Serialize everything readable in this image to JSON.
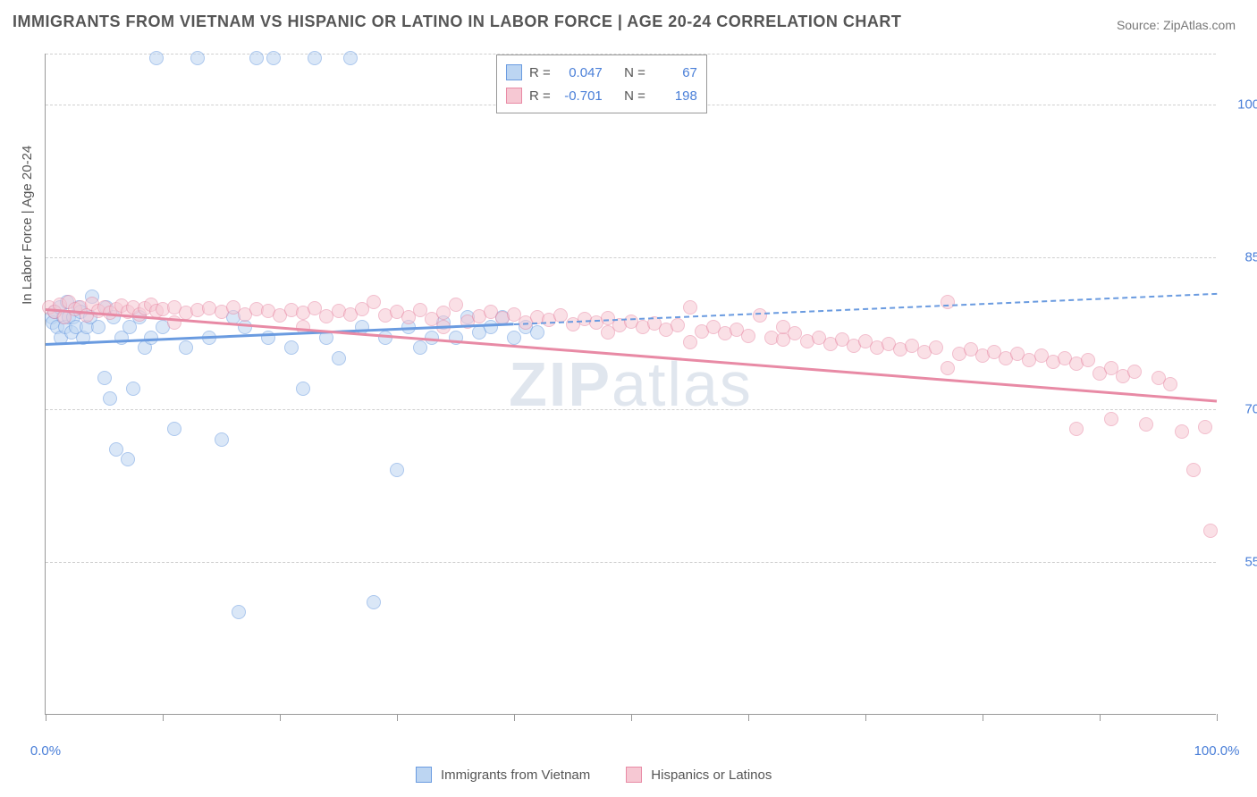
{
  "title": "IMMIGRANTS FROM VIETNAM VS HISPANIC OR LATINO IN LABOR FORCE | AGE 20-24 CORRELATION CHART",
  "source": "Source: ZipAtlas.com",
  "watermark_a": "ZIP",
  "watermark_b": "atlas",
  "chart": {
    "type": "scatter",
    "background_color": "#ffffff",
    "grid_color": "#d0d0d0",
    "axis_color": "#999999",
    "label_color": "#555555",
    "tick_label_color": "#4a7fd8",
    "xlim": [
      0,
      100
    ],
    "ylim": [
      40,
      105
    ],
    "x_ticks": [
      0,
      10,
      20,
      30,
      40,
      50,
      60,
      70,
      80,
      90,
      100
    ],
    "x_tick_labels": {
      "0": "0.0%",
      "100": "100.0%"
    },
    "y_grid": [
      55,
      70,
      85,
      100,
      105
    ],
    "y_tick_labels": {
      "55": "55.0%",
      "70": "70.0%",
      "85": "85.0%",
      "100": "100.0%"
    },
    "ylabel": "In Labor Force | Age 20-24",
    "marker_radius": 8,
    "marker_stroke_width": 1.5,
    "series": [
      {
        "name": "Immigrants from Vietnam",
        "fill": "#bcd5f2",
        "stroke": "#6a9be0",
        "fill_opacity": 0.55,
        "R": "0.047",
        "N": "67",
        "trend": {
          "x1": 0,
          "y1": 76.5,
          "x2": 40,
          "y2": 78.5,
          "solid_until_x": 40,
          "dash_to_x": 100,
          "y_at_100": 81.5
        },
        "points": [
          [
            0.5,
            79
          ],
          [
            0.6,
            78.5
          ],
          [
            0.8,
            79.5
          ],
          [
            1,
            78
          ],
          [
            1.2,
            80
          ],
          [
            1.3,
            77
          ],
          [
            1.5,
            79
          ],
          [
            1.7,
            78
          ],
          [
            1.8,
            80.5
          ],
          [
            2,
            79
          ],
          [
            2.2,
            77.5
          ],
          [
            2.4,
            79
          ],
          [
            2.6,
            78
          ],
          [
            2.8,
            80
          ],
          [
            3,
            79.5
          ],
          [
            3.2,
            77
          ],
          [
            3.5,
            78
          ],
          [
            3.8,
            79
          ],
          [
            4,
            81
          ],
          [
            4.5,
            78
          ],
          [
            5,
            73
          ],
          [
            5.2,
            80
          ],
          [
            5.5,
            71
          ],
          [
            5.8,
            79
          ],
          [
            6,
            66
          ],
          [
            6.5,
            77
          ],
          [
            7,
            65
          ],
          [
            7.2,
            78
          ],
          [
            7.5,
            72
          ],
          [
            8,
            79
          ],
          [
            8.5,
            76
          ],
          [
            9,
            77
          ],
          [
            9.5,
            104.5
          ],
          [
            10,
            78
          ],
          [
            11,
            68
          ],
          [
            12,
            76
          ],
          [
            13,
            104.5
          ],
          [
            14,
            77
          ],
          [
            15,
            67
          ],
          [
            16,
            79
          ],
          [
            16.5,
            50
          ],
          [
            17,
            78
          ],
          [
            18,
            104.5
          ],
          [
            19,
            77
          ],
          [
            19.5,
            104.5
          ],
          [
            21,
            76
          ],
          [
            22,
            72
          ],
          [
            23,
            104.5
          ],
          [
            24,
            77
          ],
          [
            25,
            75
          ],
          [
            26,
            104.5
          ],
          [
            27,
            78
          ],
          [
            28,
            51
          ],
          [
            29,
            77
          ],
          [
            30,
            64
          ],
          [
            31,
            78
          ],
          [
            32,
            76
          ],
          [
            33,
            77
          ],
          [
            34,
            78.5
          ],
          [
            35,
            77
          ],
          [
            36,
            79
          ],
          [
            37,
            77.5
          ],
          [
            38,
            78
          ],
          [
            39,
            79
          ],
          [
            40,
            77
          ],
          [
            41,
            78
          ],
          [
            42,
            77.5
          ]
        ]
      },
      {
        "name": "Hispanics or Latinos",
        "fill": "#f6c8d3",
        "stroke": "#e88aa5",
        "fill_opacity": 0.55,
        "R": "-0.701",
        "N": "198",
        "trend": {
          "x1": 0,
          "y1": 80,
          "x2": 100,
          "y2": 71,
          "solid_until_x": 100
        },
        "points": [
          [
            0.3,
            80
          ],
          [
            0.8,
            79.5
          ],
          [
            1.2,
            80.2
          ],
          [
            1.6,
            79
          ],
          [
            2,
            80.5
          ],
          [
            2.5,
            79.8
          ],
          [
            3,
            80
          ],
          [
            3.5,
            79.2
          ],
          [
            4,
            80.3
          ],
          [
            4.5,
            79.6
          ],
          [
            5,
            80
          ],
          [
            5.5,
            79.4
          ],
          [
            6,
            79.8
          ],
          [
            6.5,
            80.1
          ],
          [
            7,
            79.5
          ],
          [
            7.5,
            80
          ],
          [
            8,
            79.3
          ],
          [
            8.5,
            79.9
          ],
          [
            9,
            80.2
          ],
          [
            9.5,
            79.6
          ],
          [
            10,
            79.8
          ],
          [
            11,
            80
          ],
          [
            12,
            79.4
          ],
          [
            13,
            79.7
          ],
          [
            14,
            79.9
          ],
          [
            15,
            79.5
          ],
          [
            16,
            80
          ],
          [
            17,
            79.3
          ],
          [
            18,
            79.8
          ],
          [
            19,
            79.6
          ],
          [
            20,
            79.2
          ],
          [
            21,
            79.7
          ],
          [
            22,
            79.4
          ],
          [
            23,
            79.9
          ],
          [
            24,
            79.1
          ],
          [
            25,
            79.6
          ],
          [
            26,
            79.3
          ],
          [
            27,
            79.8
          ],
          [
            28,
            80.5
          ],
          [
            29,
            79.2
          ],
          [
            30,
            79.5
          ],
          [
            31,
            79
          ],
          [
            32,
            79.7
          ],
          [
            33,
            78.8
          ],
          [
            34,
            79.4
          ],
          [
            35,
            80.2
          ],
          [
            36,
            78.6
          ],
          [
            37,
            79.1
          ],
          [
            38,
            79.5
          ],
          [
            39,
            78.9
          ],
          [
            40,
            79.3
          ],
          [
            41,
            78.5
          ],
          [
            42,
            79
          ],
          [
            43,
            78.7
          ],
          [
            44,
            79.2
          ],
          [
            45,
            78.3
          ],
          [
            46,
            78.8
          ],
          [
            47,
            78.5
          ],
          [
            48,
            78.9
          ],
          [
            49,
            78.2
          ],
          [
            50,
            78.6
          ],
          [
            51,
            78
          ],
          [
            52,
            78.4
          ],
          [
            53,
            77.8
          ],
          [
            54,
            78.2
          ],
          [
            55,
            80
          ],
          [
            56,
            77.6
          ],
          [
            57,
            78
          ],
          [
            58,
            77.4
          ],
          [
            59,
            77.8
          ],
          [
            60,
            77.2
          ],
          [
            61,
            79.2
          ],
          [
            62,
            77
          ],
          [
            63,
            76.8
          ],
          [
            64,
            77.4
          ],
          [
            65,
            76.6
          ],
          [
            66,
            77
          ],
          [
            67,
            76.4
          ],
          [
            68,
            76.8
          ],
          [
            69,
            76.2
          ],
          [
            70,
            76.6
          ],
          [
            71,
            76
          ],
          [
            72,
            76.4
          ],
          [
            73,
            75.8
          ],
          [
            74,
            76.2
          ],
          [
            75,
            75.6
          ],
          [
            76,
            76
          ],
          [
            77,
            80.5
          ],
          [
            78,
            75.4
          ],
          [
            79,
            75.8
          ],
          [
            80,
            75.2
          ],
          [
            81,
            75.6
          ],
          [
            82,
            75
          ],
          [
            83,
            75.4
          ],
          [
            84,
            74.8
          ],
          [
            85,
            75.2
          ],
          [
            86,
            74.6
          ],
          [
            87,
            75
          ],
          [
            88,
            74.4
          ],
          [
            89,
            74.8
          ],
          [
            90,
            73.5
          ],
          [
            91,
            74
          ],
          [
            92,
            73.2
          ],
          [
            93,
            73.6
          ],
          [
            94,
            68.5
          ],
          [
            95,
            73
          ],
          [
            96,
            72.4
          ],
          [
            97,
            67.8
          ],
          [
            98,
            64
          ],
          [
            99,
            68.2
          ],
          [
            99.5,
            58
          ],
          [
            88,
            68
          ],
          [
            91,
            69
          ],
          [
            77,
            74
          ],
          [
            63,
            78
          ],
          [
            55,
            76.5
          ],
          [
            48,
            77.5
          ],
          [
            34,
            78
          ],
          [
            22,
            78
          ],
          [
            11,
            78.5
          ]
        ]
      }
    ],
    "legend_top": {
      "rows": [
        {
          "swatch_fill": "#bcd5f2",
          "swatch_stroke": "#6a9be0",
          "R_label": "R =",
          "R": "0.047",
          "N_label": "N =",
          "N": "67"
        },
        {
          "swatch_fill": "#f6c8d3",
          "swatch_stroke": "#e88aa5",
          "R_label": "R =",
          "R": "-0.701",
          "N_label": "N =",
          "N": "198"
        }
      ]
    },
    "legend_bottom": [
      {
        "swatch_fill": "#bcd5f2",
        "swatch_stroke": "#6a9be0",
        "label": "Immigrants from Vietnam"
      },
      {
        "swatch_fill": "#f6c8d3",
        "swatch_stroke": "#e88aa5",
        "label": "Hispanics or Latinos"
      }
    ]
  }
}
